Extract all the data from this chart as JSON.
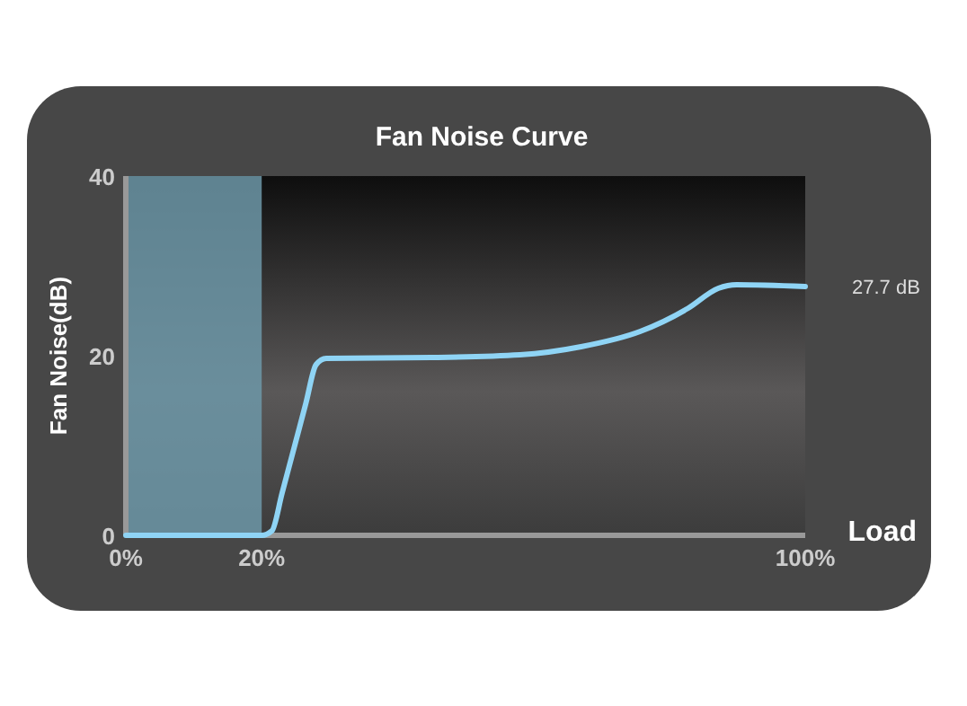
{
  "chart_data": {
    "type": "line",
    "title": "Fan Noise Curve",
    "xlabel": "Load",
    "ylabel": "Fan Noise(dB)",
    "x": [
      0,
      20,
      21.5,
      23,
      26.5,
      28,
      29.5,
      45,
      58,
      67,
      75.7,
      82.8,
      87.2,
      89.9,
      100
    ],
    "series": [
      {
        "color": "#8fd4f5",
        "values": [
          0,
          0,
          0.5,
          4.7,
          14.7,
          19,
          19.7,
          19.8,
          20.1,
          21,
          22.7,
          25.3,
          27.5,
          27.9,
          27.7
        ]
      }
    ],
    "xlim": [
      0,
      100
    ],
    "xticks": [
      {
        "value": 0,
        "label": "0%"
      },
      {
        "value": 20,
        "label": "20%"
      },
      {
        "value": 100,
        "label": "100%"
      }
    ],
    "ylim": [
      0,
      40
    ],
    "yticks": [
      0,
      20,
      40
    ],
    "bands": [
      {
        "axis": "x",
        "from": 0,
        "to": 20,
        "color": "#6d98a8"
      }
    ],
    "annotations": [
      {
        "text": "27.7 dB",
        "x": 100,
        "y": 27.7
      }
    ],
    "grid": false,
    "marker": "none",
    "line_style": "solid"
  }
}
